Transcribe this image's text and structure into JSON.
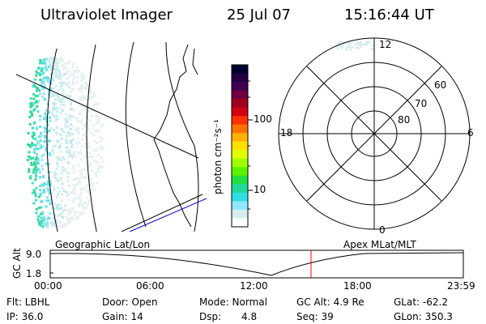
{
  "header": {
    "instrument": "Ultraviolet Imager",
    "date": "25 Jul 07",
    "time": "15:16:44 UT"
  },
  "colorbar": {
    "unit_label": "photon cm⁻²s⁻¹",
    "ticks": [
      "100",
      "10"
    ],
    "colors": [
      "#000030",
      "#200040",
      "#400050",
      "#700040",
      "#a00020",
      "#d00010",
      "#ff3000",
      "#ff7000",
      "#ffb000",
      "#ffe000",
      "#e0ff00",
      "#a0ff00",
      "#60f000",
      "#20e040",
      "#20d8a0",
      "#30e0e0",
      "#90e8ff",
      "#d8eeee",
      "#ffffff"
    ]
  },
  "polar_plot": {
    "mlt_labels": [
      "12",
      "18",
      "6",
      "0"
    ],
    "lat_labels": [
      "60",
      "70",
      "80"
    ]
  },
  "timeline": {
    "y_axis_label": "GC Alt",
    "y_ticks": [
      "9.0",
      "1.8"
    ],
    "left_label": "Geographic Lat/Lon",
    "right_label": "Apex MLat/MLT",
    "x_ticks": [
      "00:00",
      "06:00",
      "12:00",
      "18:00",
      "23:59"
    ],
    "marker_color": "#ff0000"
  },
  "info": {
    "flt": "Flt: LBHL",
    "ip": "IP: 36.0",
    "door": "Door: Open",
    "gain": "Gain: 14",
    "mode": "Mode: Normal",
    "dsp_label": "Dsp:",
    "dsp_value": "4.8",
    "gcalt": "GC Alt: 4.9 Re",
    "seq": "Seq: 39",
    "glat": "GLat: -62.2",
    "glon": "GLon: 350.3"
  }
}
